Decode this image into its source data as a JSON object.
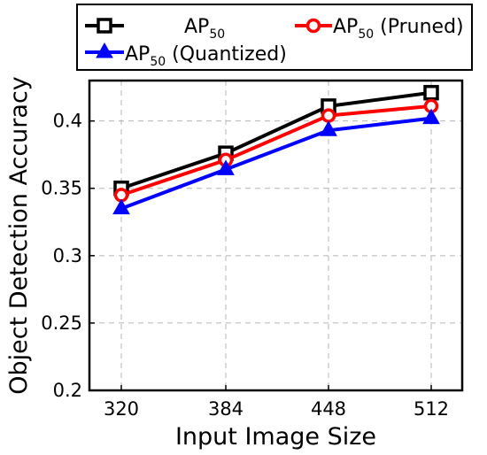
{
  "chart_data": {
    "type": "line",
    "xlabel": "Input Image Size",
    "ylabel": "Object Detection Accuracy",
    "categories": [
      "320",
      "384",
      "448",
      "512"
    ],
    "ylim": [
      0.2,
      0.43
    ],
    "yticks": [
      "0.2",
      "0.25",
      "0.3",
      "0.35",
      "0.4"
    ],
    "grid": true,
    "legend_position": "top",
    "series": [
      {
        "name": "AP",
        "name_sub": "50",
        "name_suffix": "",
        "color": "#000000",
        "marker": "square",
        "values": [
          0.35,
          0.376,
          0.411,
          0.421
        ]
      },
      {
        "name": "AP",
        "name_sub": "50",
        "name_suffix": " (Pruned)",
        "color": "#ff0000",
        "marker": "circle",
        "values": [
          0.345,
          0.371,
          0.404,
          0.411
        ]
      },
      {
        "name": "AP",
        "name_sub": "50",
        "name_suffix": " (Quantized)",
        "color": "#0000ff",
        "marker": "triangle",
        "values": [
          0.335,
          0.364,
          0.393,
          0.402
        ]
      }
    ]
  }
}
